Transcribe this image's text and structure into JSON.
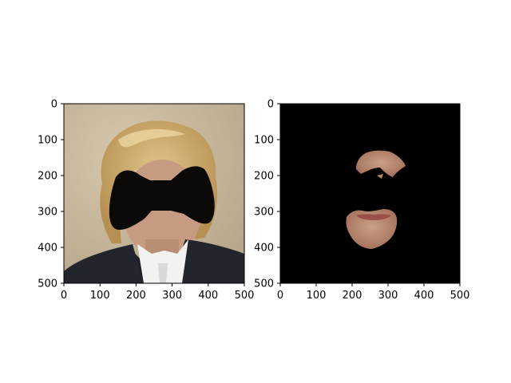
{
  "figure": {
    "background": "#ffffff",
    "panels": [
      {
        "id": "left",
        "description_name": "masked-portrait",
        "x_ticks": [
          "0",
          "100",
          "200",
          "300",
          "400",
          "500"
        ],
        "y_ticks": [
          "0",
          "100",
          "200",
          "300",
          "400",
          "500"
        ],
        "xlim": [
          0,
          500
        ],
        "ylim": [
          500,
          0
        ],
        "colors": {
          "wall": "#c9b99d",
          "hair": "#c9a86a",
          "mask": "#0b0808",
          "jacket": "#1d1f26",
          "shirt": "#f2f2f0"
        }
      },
      {
        "id": "right",
        "description_name": "cropped-face-regions",
        "x_ticks": [
          "0",
          "100",
          "200",
          "300",
          "400",
          "500"
        ],
        "y_ticks": [
          "0",
          "100",
          "200",
          "300",
          "400",
          "500"
        ],
        "xlim": [
          0,
          500
        ],
        "ylim": [
          500,
          0
        ],
        "colors": {
          "background": "#000000",
          "skin": "#b9846c",
          "lips": "#a25a52"
        }
      }
    ]
  }
}
